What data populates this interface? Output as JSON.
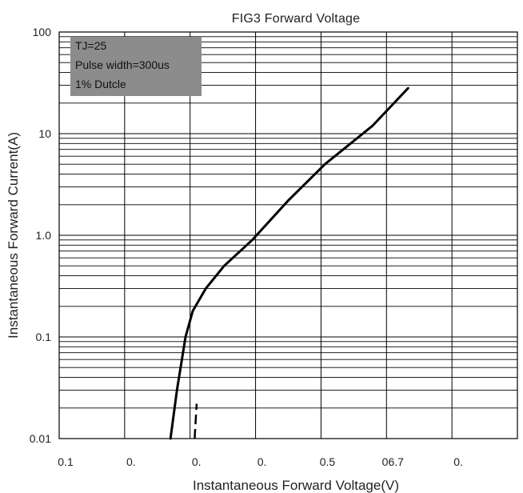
{
  "chart_data": {
    "type": "line",
    "title": "FIG3   Forward Voltage",
    "xlabel": "Instantaneous Forward Voltage(V)",
    "ylabel": "Instantaneous Forward Current(A)",
    "x_tick_labels": [
      "0.1",
      "0.",
      "0.",
      "0.",
      "0.5",
      "06.7",
      "0."
    ],
    "y_tick_labels": [
      "100",
      "10",
      "1.0",
      "0.1",
      "0.01"
    ],
    "y_scale": "log",
    "ylim": [
      0.01,
      100
    ],
    "x_divisions": 7,
    "grid": true,
    "annotation": [
      "TJ=25",
      "Pulse width=300us",
      "1% Dutcle"
    ],
    "series": [
      {
        "x_divisions": [
          1.7,
          1.8,
          1.93,
          2.04,
          2.24,
          2.52,
          2.95,
          3.5,
          4.06,
          4.79,
          5.33
        ],
        "values": [
          0.01,
          0.03,
          0.1,
          0.18,
          0.3,
          0.5,
          0.9,
          2.2,
          5.0,
          12.0,
          28.0
        ]
      }
    ],
    "dashed_segment": {
      "x_divisions": [
        2.07,
        2.1
      ],
      "values": [
        0.01,
        0.022
      ]
    }
  }
}
